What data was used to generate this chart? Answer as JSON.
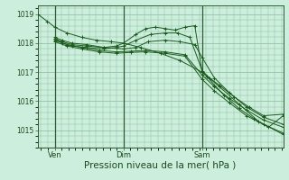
{
  "bg_color": "#cceedd",
  "grid_color": "#88bb99",
  "line_color": "#1a5c1a",
  "xlabel": "Pression niveau de la mer( hPa )",
  "xlabel_fontsize": 7.5,
  "yticks": [
    1015,
    1016,
    1017,
    1018,
    1019
  ],
  "ylim": [
    1014.4,
    1019.3
  ],
  "xlim": [
    0,
    1
  ],
  "xtick_labels": [
    "Ven",
    "Dim",
    "Sam"
  ],
  "xtick_positions": [
    0.07,
    0.35,
    0.67
  ],
  "vline_positions": [
    0.07,
    0.35,
    0.67
  ],
  "series": [
    {
      "x": [
        0.0,
        0.04,
        0.07,
        0.12,
        0.18,
        0.24,
        0.3,
        0.35,
        0.42,
        0.5,
        0.58,
        0.67,
        0.74,
        0.82,
        0.9,
        1.0
      ],
      "y": [
        1019.0,
        1018.75,
        1018.55,
        1018.35,
        1018.2,
        1018.1,
        1018.05,
        1018.0,
        1017.85,
        1017.65,
        1017.4,
        1017.0,
        1016.5,
        1015.9,
        1015.3,
        1014.85
      ]
    },
    {
      "x": [
        0.07,
        0.1,
        0.14,
        0.2,
        0.27,
        0.35,
        0.4,
        0.45,
        0.52,
        0.58,
        0.64,
        0.67,
        0.72,
        0.78,
        0.85,
        0.92,
        1.0
      ],
      "y": [
        1018.2,
        1018.1,
        1018.0,
        1017.95,
        1017.85,
        1017.8,
        1017.85,
        1018.05,
        1018.1,
        1018.05,
        1017.95,
        1017.5,
        1016.8,
        1016.3,
        1015.8,
        1015.45,
        1015.2
      ]
    },
    {
      "x": [
        0.07,
        0.1,
        0.14,
        0.2,
        0.27,
        0.32,
        0.35,
        0.4,
        0.44,
        0.48,
        0.52,
        0.56,
        0.6,
        0.64,
        0.67,
        0.69,
        0.72,
        0.76,
        0.82,
        0.88,
        0.94,
        1.0
      ],
      "y": [
        1018.15,
        1018.05,
        1017.95,
        1017.9,
        1017.85,
        1017.9,
        1018.0,
        1018.3,
        1018.5,
        1018.55,
        1018.5,
        1018.45,
        1018.55,
        1018.6,
        1017.0,
        1016.85,
        1016.55,
        1016.2,
        1015.75,
        1015.4,
        1015.1,
        1015.5
      ]
    },
    {
      "x": [
        0.07,
        0.1,
        0.14,
        0.2,
        0.27,
        0.32,
        0.35,
        0.4,
        0.46,
        0.52,
        0.57,
        0.62,
        0.67,
        0.7,
        0.74,
        0.8,
        0.86,
        0.92,
        1.0
      ],
      "y": [
        1018.15,
        1018.0,
        1017.9,
        1017.85,
        1017.8,
        1017.85,
        1017.9,
        1018.1,
        1018.3,
        1018.35,
        1018.35,
        1018.2,
        1017.05,
        1016.8,
        1016.55,
        1016.15,
        1015.8,
        1015.5,
        1015.55
      ]
    },
    {
      "x": [
        0.07,
        0.12,
        0.18,
        0.25,
        0.32,
        0.38,
        0.44,
        0.52,
        0.6,
        0.67,
        0.72,
        0.78,
        0.85,
        0.92,
        1.0
      ],
      "y": [
        1018.1,
        1017.95,
        1017.85,
        1017.75,
        1017.7,
        1017.72,
        1017.75,
        1017.7,
        1017.6,
        1016.9,
        1016.5,
        1016.1,
        1015.7,
        1015.35,
        1015.1
      ]
    },
    {
      "x": [
        0.07,
        0.12,
        0.18,
        0.25,
        0.32,
        0.38,
        0.44,
        0.52,
        0.6,
        0.67,
        0.72,
        0.78,
        0.85,
        0.92,
        1.0
      ],
      "y": [
        1018.05,
        1017.9,
        1017.8,
        1017.7,
        1017.65,
        1017.68,
        1017.7,
        1017.65,
        1017.55,
        1016.75,
        1016.35,
        1015.95,
        1015.5,
        1015.2,
        1014.9
      ]
    }
  ]
}
